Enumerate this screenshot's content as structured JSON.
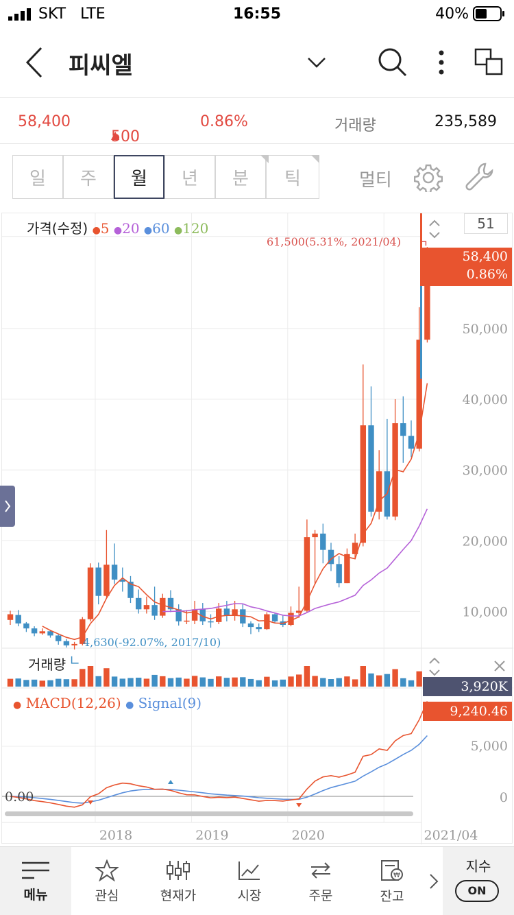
{
  "status_bar": {
    "carrier": "SKT",
    "network": "LTE",
    "time": "16:55",
    "battery": "40%"
  },
  "header": {
    "title": "피씨엘"
  },
  "quote": {
    "price": "58,400",
    "change": "500",
    "change_pct": "0.86%",
    "volume_label": "거래량",
    "volume": "235,589"
  },
  "period_tabs": [
    {
      "label": "일"
    },
    {
      "label": "주"
    },
    {
      "label": "월",
      "active": true
    },
    {
      "label": "년"
    },
    {
      "label": "분"
    },
    {
      "label": "틱"
    }
  ],
  "toolbar": {
    "multi_label": "멀티"
  },
  "price_legend": {
    "title": "가격(수정)",
    "ma": [
      {
        "label": "5",
        "color": "#e8542f"
      },
      {
        "label": "20",
        "color": "#b561d8"
      },
      {
        "label": "60",
        "color": "#5a8fdc"
      },
      {
        "label": "120",
        "color": "#8dbb5c"
      }
    ]
  },
  "side_counter": "51",
  "price_badge": {
    "price": "58,400",
    "pct": "0.86%"
  },
  "high_annotation": "61,500(5.31%, 2021/04)",
  "low_annotation": "4,630(-92.07%, 2017/10)",
  "volume_title": "거래량",
  "volume_badge": "3,920K",
  "macd_legend": {
    "macd": "MACD(12,26)",
    "signal": "Signal(9)"
  },
  "macd_badge": "9,240.46",
  "macd_zero_label": "0.00",
  "chart_data": [
    {
      "type": "candlestick",
      "title": "가격(수정)",
      "x_labels": [
        "2018",
        "2019",
        "2020",
        "2021/04"
      ],
      "y_ticks": [
        "10,000",
        "20,000",
        "30,000",
        "40,000",
        "50,000"
      ],
      "ylim": [
        5000,
        62000
      ],
      "candles": [
        [
          8800,
          9600,
          10100,
          8100
        ],
        [
          9500,
          8300,
          10200,
          7900
        ],
        [
          8300,
          7600,
          8500,
          7100
        ],
        [
          7600,
          6900,
          7900,
          6500
        ],
        [
          6900,
          7200,
          7600,
          6700
        ],
        [
          7200,
          6600,
          7400,
          6300
        ],
        [
          6600,
          5800,
          6800,
          5300
        ],
        [
          5800,
          5200,
          6100,
          4900
        ],
        [
          5200,
          5400,
          5700,
          4630
        ],
        [
          5400,
          8900,
          9200,
          5200
        ],
        [
          8900,
          16200,
          16800,
          8600
        ],
        [
          16200,
          12200,
          16900,
          11000
        ],
        [
          12200,
          16600,
          21500,
          12000
        ],
        [
          16600,
          14500,
          19600,
          13900
        ],
        [
          14500,
          14200,
          16200,
          12800
        ],
        [
          14200,
          11900,
          15000,
          11200
        ],
        [
          11900,
          10300,
          13100,
          9700
        ],
        [
          10300,
          10900,
          12100,
          9700
        ],
        [
          10900,
          9400,
          13500,
          8800
        ],
        [
          9400,
          11900,
          12500,
          9100
        ],
        [
          11900,
          10300,
          13000,
          9900
        ],
        [
          10300,
          8600,
          11000,
          8000
        ],
        [
          8600,
          8700,
          10200,
          8200
        ],
        [
          8700,
          10300,
          11500,
          8200
        ],
        [
          10300,
          8600,
          11200,
          8100
        ],
        [
          8600,
          8500,
          9600,
          7700
        ],
        [
          8500,
          10400,
          11200,
          8200
        ],
        [
          10400,
          9400,
          11500,
          8600
        ],
        [
          9400,
          10300,
          11500,
          8700
        ],
        [
          10300,
          8300,
          11000,
          7800
        ],
        [
          8300,
          7800,
          8600,
          6800
        ],
        [
          7800,
          7500,
          8300,
          7100
        ],
        [
          7500,
          9600,
          9900,
          7400
        ],
        [
          9600,
          8600,
          9700,
          8300
        ],
        [
          8600,
          8100,
          9400,
          7800
        ],
        [
          8100,
          9800,
          10700,
          7900
        ],
        [
          9800,
          10100,
          13500,
          9100
        ],
        [
          10100,
          20500,
          23000,
          9900
        ],
        [
          20500,
          21000,
          21500,
          13800
        ],
        [
          21000,
          18700,
          22400,
          16800
        ],
        [
          18700,
          16700,
          19700,
          15700
        ],
        [
          16700,
          14000,
          17800,
          13400
        ],
        [
          14000,
          18100,
          18900,
          14000
        ],
        [
          18100,
          19700,
          21000,
          17400
        ],
        [
          19700,
          36300,
          44900,
          19200
        ],
        [
          36300,
          24100,
          41800,
          23400
        ],
        [
          24100,
          29800,
          32800,
          23000
        ],
        [
          29800,
          23400,
          37200,
          23000
        ],
        [
          23400,
          36600,
          40000,
          22900
        ],
        [
          36600,
          34800,
          40400,
          31000
        ],
        [
          34800,
          33000,
          37000,
          31800
        ],
        [
          33000,
          48400,
          53000,
          32600
        ],
        [
          48400,
          58400,
          61500,
          48000
        ]
      ]
    },
    {
      "type": "bar",
      "title": "거래량",
      "badge": "3,920K"
    },
    {
      "type": "line",
      "title": "MACD(12,26)",
      "series": [
        {
          "name": "MACD(12,26)"
        },
        {
          "name": "Signal(9)"
        }
      ],
      "y_ticks": [
        "0",
        "5,000"
      ],
      "ylim": [
        -600,
        10000
      ]
    }
  ],
  "bottom_nav": [
    {
      "label": "메뉴",
      "icon": "menu-icon"
    },
    {
      "label": "관심",
      "icon": "star-icon"
    },
    {
      "label": "현재가",
      "icon": "candle-icon"
    },
    {
      "label": "시장",
      "icon": "trend-icon"
    },
    {
      "label": "주문",
      "icon": "swap-icon"
    },
    {
      "label": "잔고",
      "icon": "wallet-icon"
    }
  ],
  "index_toggle": {
    "label": "지수",
    "state": "ON"
  },
  "colors": {
    "up": "#e8542f",
    "down": "#3f8fc4",
    "ma20": "#b561d8",
    "signal": "#5a8fdc",
    "badge_dark": "#4e5370"
  }
}
